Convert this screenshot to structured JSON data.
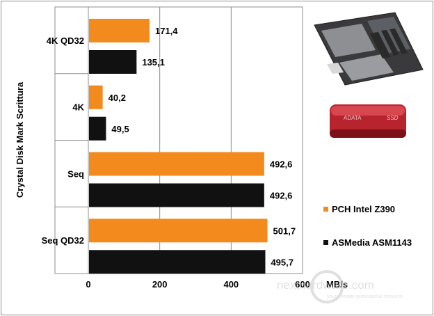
{
  "chart_data": {
    "type": "bar",
    "orientation": "horizontal",
    "categories": [
      "4K QD32",
      "4K",
      "Seq",
      "Seq QD32"
    ],
    "series": [
      {
        "name": "PCH Intel Z390",
        "color": "#f28a1e",
        "values": [
          171.4,
          40.2,
          492.6,
          501.7
        ],
        "labels": [
          "171,4",
          "40,2",
          "492,6",
          "501,7"
        ]
      },
      {
        "name": "ASMedia ASM1143",
        "color": "#111111",
        "values": [
          135.1,
          49.5,
          492.6,
          495.7
        ],
        "labels": [
          "135,1",
          "49,5",
          "492,6",
          "495,7"
        ]
      }
    ],
    "xlim": [
      0,
      600
    ],
    "xticks": [
      "0",
      "200",
      "400",
      "600"
    ],
    "xtick_values": [
      0,
      200,
      400,
      600
    ],
    "xlabel": "MB/s",
    "ylabel": "Crystal Disk Mark Scrittura",
    "grid": "vertical",
    "legend": "right"
  },
  "images": {
    "motherboard": "motherboard-photo",
    "ssd": "external-ssd-photo",
    "ssd_brand": "ADATA",
    "ssd_tag": "SSD"
  },
  "watermark": {
    "brand": "nexthardware.com",
    "tagline": "your ultimate professional resource"
  }
}
